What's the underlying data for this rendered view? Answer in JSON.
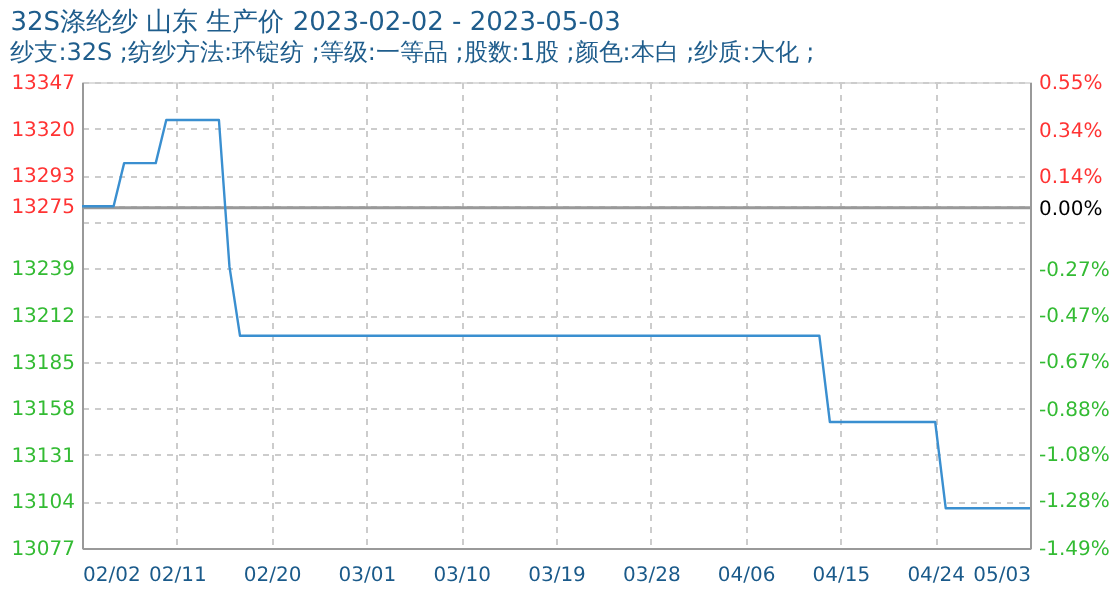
{
  "chart_data": {
    "type": "line",
    "title": "32S涤纶纱 山东 生产价 2023-02-02 - 2023-05-03",
    "subtitle": "纱支:32S ;纺纱方法:环锭纺 ;等级:一等品 ;股数:1股 ;颜色:本白 ;纱质:大化 ;",
    "x": [
      "2023-02-02",
      "2023-02-05",
      "2023-02-06",
      "2023-02-09",
      "2023-02-10",
      "2023-02-15",
      "2023-02-16",
      "2023-02-17",
      "2023-04-13",
      "2023-04-14",
      "2023-04-24",
      "2023-04-25",
      "2023-05-03"
    ],
    "series": [
      {
        "color": "#3a8fd0",
        "values": [
          13275,
          13275,
          13300,
          13300,
          13325,
          13325,
          13240,
          13200,
          13200,
          13150,
          13150,
          13100,
          13100
        ]
      }
    ],
    "xlim": [
      "2023-02-02",
      "2023-05-03"
    ],
    "xticks": [
      {
        "value": "2023-02-02",
        "label": "02/02"
      },
      {
        "value": "2023-02-11",
        "label": "02/11"
      },
      {
        "value": "2023-02-20",
        "label": "02/20"
      },
      {
        "value": "2023-03-01",
        "label": "03/01"
      },
      {
        "value": "2023-03-10",
        "label": "03/10"
      },
      {
        "value": "2023-03-19",
        "label": "03/19"
      },
      {
        "value": "2023-03-28",
        "label": "03/28"
      },
      {
        "value": "2023-04-06",
        "label": "04/06"
      },
      {
        "value": "2023-04-15",
        "label": "04/15"
      },
      {
        "value": "2023-04-24",
        "label": "04/24"
      },
      {
        "value": "2023-05-03",
        "label": "05/03"
      }
    ],
    "ylim": [
      13077,
      13347
    ],
    "yticks": [
      {
        "value": 13347,
        "label": "13347"
      },
      {
        "value": 13320,
        "label": "13320"
      },
      {
        "value": 13293,
        "label": "13293"
      },
      {
        "value": 13275,
        "label": "13275"
      },
      {
        "value": 13266,
        "label": null
      },
      {
        "value": 13239,
        "label": "13239"
      },
      {
        "value": 13212,
        "label": "13212"
      },
      {
        "value": 13185,
        "label": "13185"
      },
      {
        "value": 13158,
        "label": "13158"
      },
      {
        "value": 13131,
        "label": "13131"
      },
      {
        "value": 13104,
        "label": "13104"
      },
      {
        "value": 13077,
        "label": "13077"
      }
    ],
    "y2lim": [
      -1.49,
      0.55
    ],
    "y2ticks": [
      {
        "value": 0.55,
        "label": "0.55%"
      },
      {
        "value": 0.34,
        "label": "0.34%"
      },
      {
        "value": 0.14,
        "label": "0.14%"
      },
      {
        "value": 0,
        "label": "0.00%"
      },
      {
        "value": -0.27,
        "label": "-0.27%"
      },
      {
        "value": -0.47,
        "label": "-0.47%"
      },
      {
        "value": -0.67,
        "label": "-0.67%"
      },
      {
        "value": -0.88,
        "label": "-0.88%"
      },
      {
        "value": -1.08,
        "label": "-1.08%"
      },
      {
        "value": -1.28,
        "label": "-1.28%"
      },
      {
        "value": -1.49,
        "label": "-1.49%"
      }
    ],
    "ref_lines": [
      {
        "axis": "y2",
        "value": 0,
        "color": "#999999"
      }
    ],
    "grid": true,
    "legend": false,
    "marker": "none",
    "line_style": "solid"
  }
}
